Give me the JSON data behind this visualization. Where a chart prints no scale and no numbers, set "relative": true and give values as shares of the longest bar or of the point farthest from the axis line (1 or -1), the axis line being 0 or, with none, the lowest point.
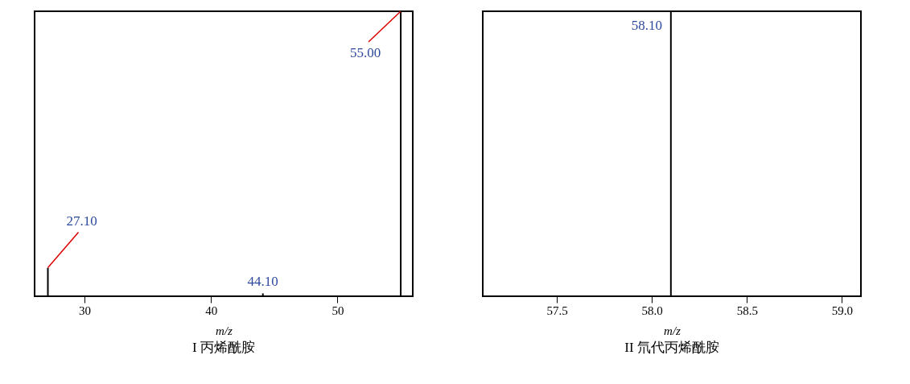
{
  "chart_data": [
    {
      "type": "bar",
      "relative": true,
      "title": "I  丙烯酰胺",
      "xlabel": "m/z",
      "x": [
        27.1,
        44.1,
        55.0
      ],
      "values": [
        0.1,
        0.01,
        1
      ],
      "color": "#000000",
      "xlim": [
        26.05,
        55.95
      ],
      "xticks": [
        30,
        40,
        50
      ],
      "grid": false,
      "annotations": [
        {
          "text": "27.10",
          "x": 27.1,
          "y": 0.1
        },
        {
          "text": "44.10",
          "x": 44.1,
          "y": 0.01
        },
        {
          "text": "55.00",
          "x": 55.0,
          "y": 1
        }
      ]
    },
    {
      "type": "bar",
      "relative": true,
      "title": "II  氘代丙烯酰胺",
      "xlabel": "m/z",
      "x": [
        58.1
      ],
      "values": [
        1
      ],
      "color": "#000000",
      "xlim": [
        57.11,
        59.1
      ],
      "xticks": [
        57.5,
        {
          "value": 58,
          "label": "58.0"
        },
        58.5,
        {
          "value": 59,
          "label": "59.0"
        }
      ],
      "grid": false,
      "annotations": [
        {
          "text": "58.10",
          "x": 58.1,
          "y": 1
        }
      ]
    }
  ]
}
